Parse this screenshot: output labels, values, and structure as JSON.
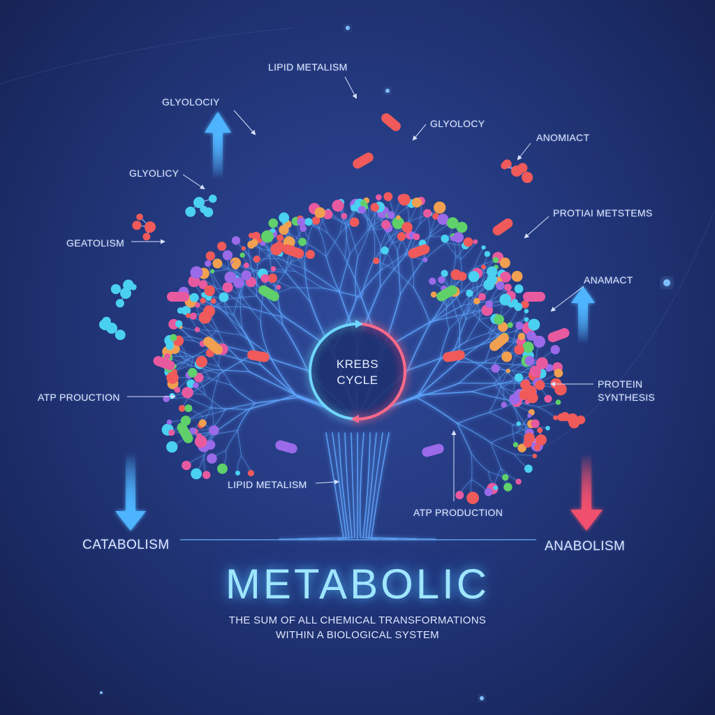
{
  "title": "METABOLIC",
  "subtitle_line1": "THE SUM OF ALL CHEMICAL TRANSFORMATIONS",
  "subtitle_line2": "WITHIN A BIOLOGICAL SYSTEM",
  "center": {
    "line1": "KREBS",
    "line2": "CYCLE"
  },
  "sides": {
    "left": "CATABOLISM",
    "right": "ANABOLISM"
  },
  "labels": {
    "lipid_top": "LIPID METALISM",
    "glyolociy_left": "GLYOLOCIY",
    "glyolocy_right": "GLYOLOCY",
    "glyolicy": "GLYOLICY",
    "anomiact": "ANOMIACT",
    "protiai": "PROTIAI METSTEMS",
    "geatolism": "GEATOLISM",
    "anamact": "ANAMACT",
    "atp_left": "ATP PROUCTION",
    "protein_1": "PROTEIN",
    "protein_2": "SYNTHESIS",
    "lipid_bottom": "LIPID METALISM",
    "atp_bottom": "ATP PRODUCTION"
  },
  "colors": {
    "background": "#24397f",
    "branch": "#5fa8ff",
    "glow": "#9fe6ff",
    "catabolism_arrow": "#4fb4ff",
    "anabolism_arrow": "#f0506e",
    "molecule_red": "#f05a5a",
    "molecule_pink": "#e85aa0",
    "molecule_green": "#5fd06a",
    "molecule_purple": "#9a6ae8",
    "molecule_orange": "#f0a050",
    "molecule_cyan": "#4ad0f0"
  }
}
